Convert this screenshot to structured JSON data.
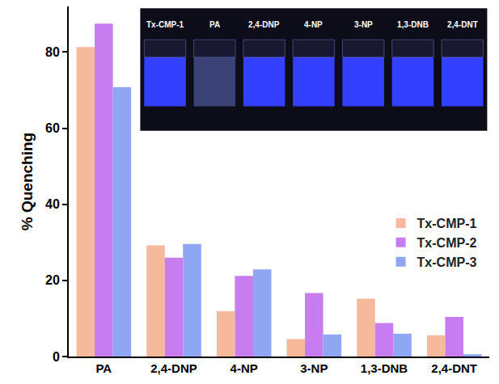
{
  "chart_data": {
    "type": "bar",
    "y_label": "% Quenching",
    "categories": [
      "PA",
      "2,4-DNP",
      "4-NP",
      "3-NP",
      "1,3-DNB",
      "2,4-DNT"
    ],
    "series": [
      {
        "name": "Tx-CMP-1",
        "color": "#f7b99c",
        "values": [
          81.3,
          29.2,
          11.9,
          4.6,
          15.2,
          5.6
        ]
      },
      {
        "name": "Tx-CMP-2",
        "color": "#c77cf0",
        "values": [
          87.5,
          26.0,
          21.2,
          16.7,
          8.8,
          10.4
        ]
      },
      {
        "name": "Tx-CMP-3",
        "color": "#8fa6f2",
        "values": [
          70.8,
          29.6,
          22.9,
          5.8,
          6.0,
          0.6
        ]
      }
    ],
    "ylim": [
      0,
      92
    ],
    "yticks": [
      0,
      20,
      40,
      60,
      80
    ],
    "grid": false,
    "legend": "right",
    "annotations": [
      "Tx-CMP-1",
      "PA",
      "2,4-DNP",
      "4-NP",
      "3-NP",
      "1,3-DNB",
      "2,4-DNT"
    ]
  }
}
